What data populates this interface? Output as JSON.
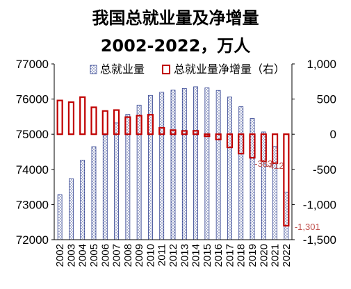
{
  "chart_data": {
    "type": "bar",
    "title": "我国总就业量及净增量",
    "subtitle": "2002-2022，万人",
    "categories": [
      "2002",
      "2003",
      "2004",
      "2005",
      "2006",
      "2007",
      "2008",
      "2009",
      "2010",
      "2011",
      "2012",
      "2013",
      "2014",
      "2015",
      "2016",
      "2017",
      "2018",
      "2019",
      "2020",
      "2021",
      "2022"
    ],
    "series": [
      {
        "name": "总就业量",
        "axis": "left",
        "style": "dotted-blue-outline",
        "values": [
          73280,
          73736,
          74264,
          74647,
          74978,
          75321,
          75564,
          75828,
          76105,
          76196,
          76254,
          76301,
          76349,
          76320,
          76245,
          76058,
          75782,
          75447,
          75064,
          74652,
          73351
        ]
      },
      {
        "name": "总就业量净增量（右）",
        "axis": "right",
        "style": "red-outline",
        "values": [
          480,
          456,
          528,
          383,
          331,
          343,
          243,
          264,
          277,
          91,
          58,
          47,
          48,
          -29,
          -75,
          -187,
          -276,
          -335,
          -383,
          -412,
          -1301
        ]
      }
    ],
    "data_labels": [
      {
        "category": "2020",
        "text": "-383"
      },
      {
        "category": "2021",
        "text": "-412"
      },
      {
        "category": "2022",
        "text": "-1,301"
      }
    ],
    "left_axis": {
      "min": 72000,
      "max": 77000,
      "step": 1000,
      "tick_labels": [
        "72000",
        "73000",
        "74000",
        "75000",
        "76000",
        "77000"
      ]
    },
    "right_axis": {
      "min": -1500,
      "max": 1000,
      "step": 500,
      "tick_labels": [
        "-1,500",
        "-1,000",
        "-500",
        "0",
        "500",
        "1,000"
      ]
    },
    "legend": {
      "position": "top",
      "items": [
        "总就业量",
        "总就业量净增量（右）"
      ]
    },
    "grid": false,
    "colors": {
      "total": "#2e3f8f",
      "net": "#c00000",
      "label": "#c0504d"
    }
  }
}
